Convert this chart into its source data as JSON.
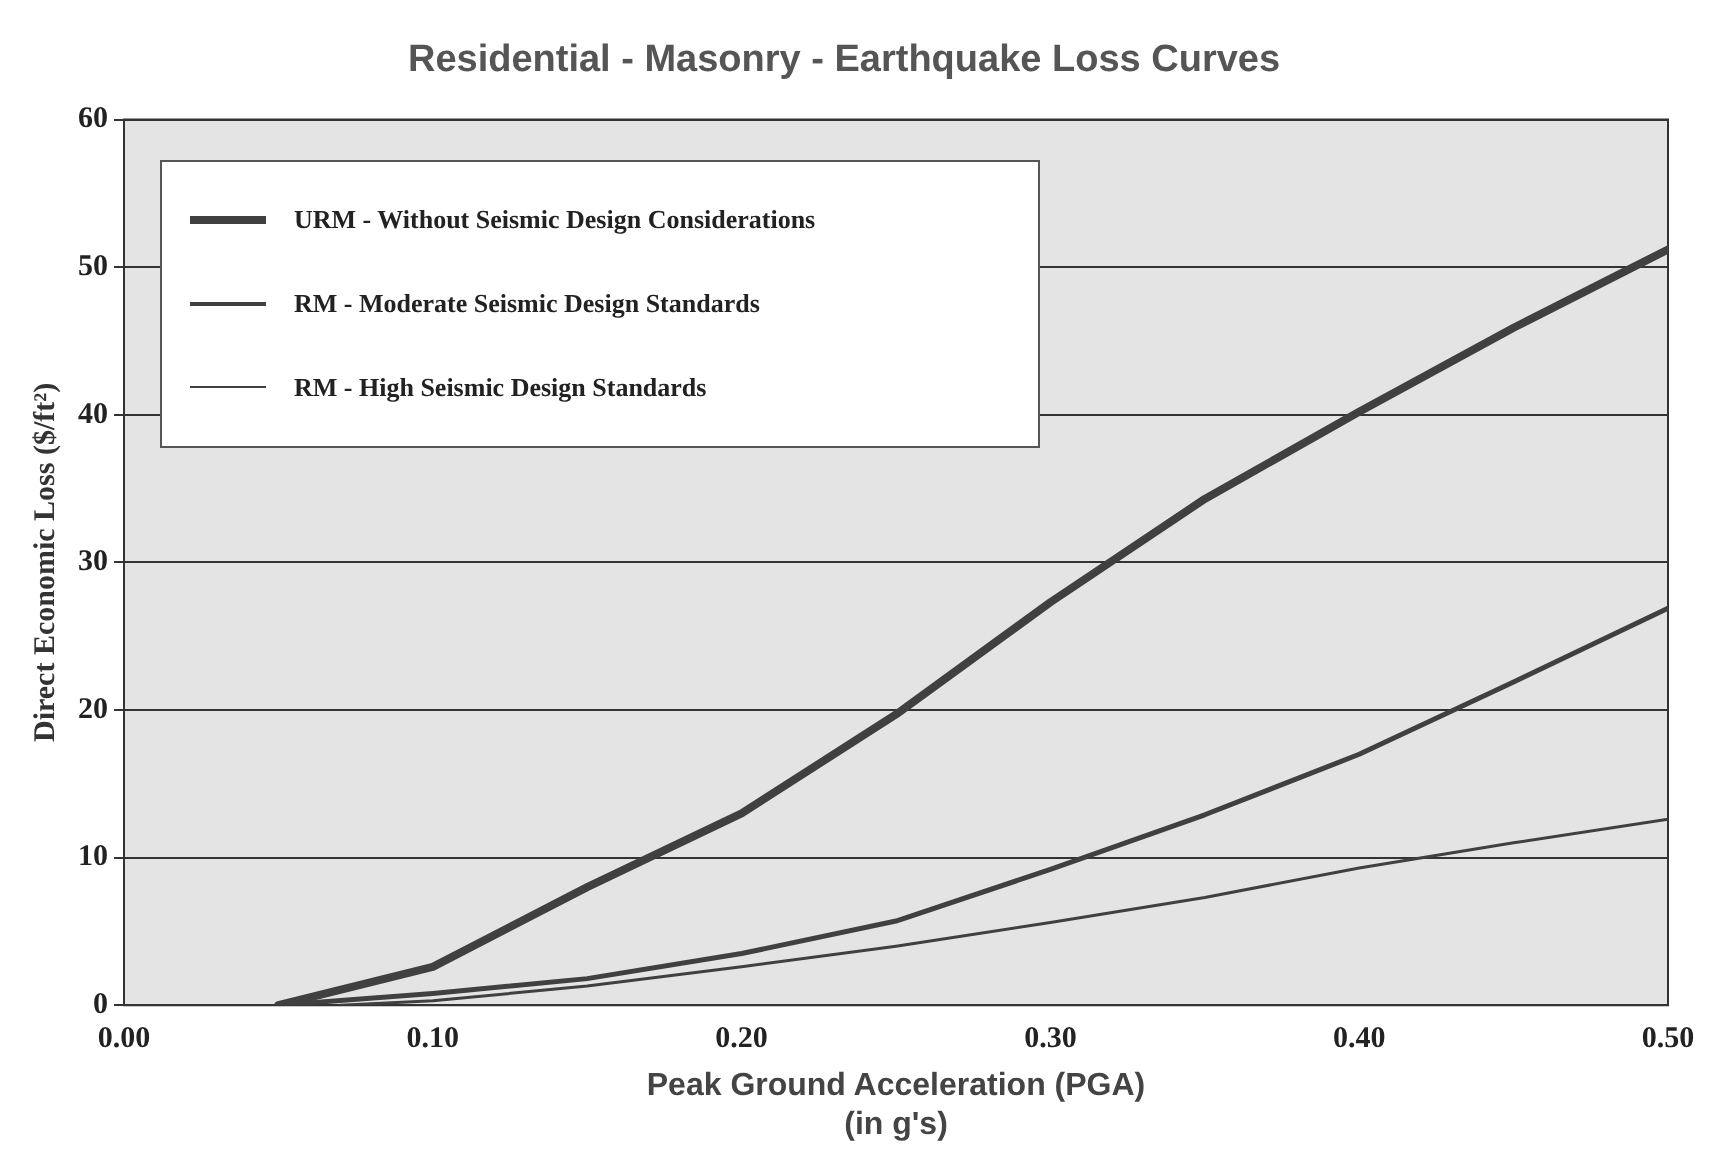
{
  "chart_data": {
    "type": "line",
    "title": "Residential - Masonry - Earthquake Loss Curves",
    "xlabel": "Peak Ground Acceleration (PGA)\n(in g's)",
    "ylabel": "Direct Economic Loss ($/ft²)",
    "xlim": [
      0,
      0.5
    ],
    "xticks": [
      {
        "value": 0,
        "label": "0.00"
      },
      {
        "value": 0.1,
        "label": "0.10"
      },
      {
        "value": 0.2,
        "label": "0.20"
      },
      {
        "value": 0.3,
        "label": "0.30"
      },
      {
        "value": 0.4,
        "label": "0.40"
      },
      {
        "value": 0.5,
        "label": "0.50"
      }
    ],
    "ylim": [
      0,
      60
    ],
    "yticks": [
      0,
      10,
      20,
      30,
      40,
      50,
      60
    ],
    "grid": "y",
    "legend": "top left",
    "marker": "none",
    "line_style": "solid",
    "series": [
      {
        "name": "URM - Without Seismic Design Considerations",
        "color": "#404040",
        "x": [
          0.05,
          0.1,
          0.15,
          0.2,
          0.25,
          0.3,
          0.35,
          0.4,
          0.45,
          0.5
        ],
        "values": [
          0,
          2.6,
          8,
          13,
          19.7,
          27.3,
          34.3,
          40.2,
          45.9,
          51.2
        ]
      },
      {
        "name": "RM - Moderate Seismic Design Standards",
        "color": "#404040",
        "x": [
          0.05,
          0.1,
          0.15,
          0.2,
          0.25,
          0.3,
          0.35,
          0.4,
          0.45,
          0.5
        ],
        "values": [
          0,
          0.8,
          1.8,
          3.5,
          5.7,
          9.2,
          12.9,
          17,
          21.9,
          26.9
        ]
      },
      {
        "name": "RM - High Seismic Design Standards",
        "color": "#404040",
        "x": [
          0.07,
          0.1,
          0.15,
          0.2,
          0.25,
          0.3,
          0.35,
          0.4,
          0.45,
          0.5
        ],
        "values": [
          0,
          0.3,
          1.3,
          2.6,
          4,
          5.6,
          7.3,
          9.3,
          11,
          12.6
        ]
      }
    ]
  }
}
